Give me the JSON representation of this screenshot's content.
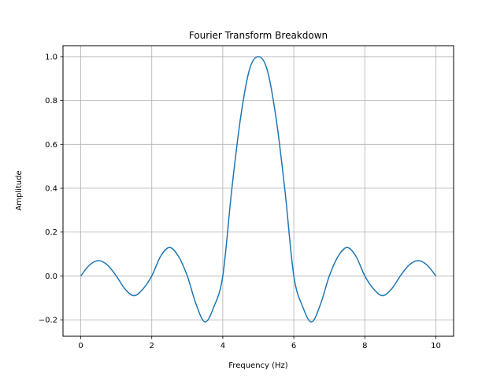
{
  "chart_data": {
    "type": "line",
    "title": "Fourier Transform Breakdown",
    "xlabel": "Frequency (Hz)",
    "ylabel": "Amplitude",
    "xlim": [
      -0.5,
      10.5
    ],
    "ylim": [
      -0.275,
      1.05
    ],
    "xticks": [
      0,
      2,
      4,
      6,
      8,
      10
    ],
    "xtick_labels": [
      "0",
      "2",
      "4",
      "6",
      "8",
      "10"
    ],
    "yticks": [
      -0.2,
      0.0,
      0.2,
      0.4,
      0.6,
      0.8,
      1.0
    ],
    "ytick_labels": [
      "−0.2",
      "0.0",
      "0.2",
      "0.4",
      "0.6",
      "0.8",
      "1.0"
    ],
    "grid": true,
    "series": [
      {
        "color": "#1f77b4",
        "x": [
          0,
          0.25,
          0.5,
          0.75,
          1.0,
          1.25,
          1.5,
          1.75,
          2.0,
          2.25,
          2.5,
          2.75,
          3.0,
          3.25,
          3.5,
          3.75,
          4.0,
          4.25,
          4.5,
          4.75,
          5.0,
          5.25,
          5.5,
          5.75,
          6.0,
          6.25,
          6.5,
          6.75,
          7.0,
          7.25,
          7.5,
          7.75,
          8.0,
          8.25,
          8.5,
          8.75,
          9.0,
          9.25,
          9.5,
          9.75,
          10.0
        ],
        "y": [
          0.0,
          0.05,
          0.07,
          0.05,
          0.0,
          -0.06,
          -0.09,
          -0.06,
          0.0,
          0.09,
          0.13,
          0.09,
          0.0,
          -0.13,
          -0.21,
          -0.14,
          0.0,
          0.39,
          0.72,
          0.94,
          1.0,
          0.94,
          0.72,
          0.39,
          0.0,
          -0.14,
          -0.21,
          -0.13,
          0.0,
          0.09,
          0.13,
          0.09,
          0.0,
          -0.06,
          -0.09,
          -0.06,
          0.0,
          0.05,
          0.07,
          0.05,
          0.0
        ]
      }
    ]
  }
}
